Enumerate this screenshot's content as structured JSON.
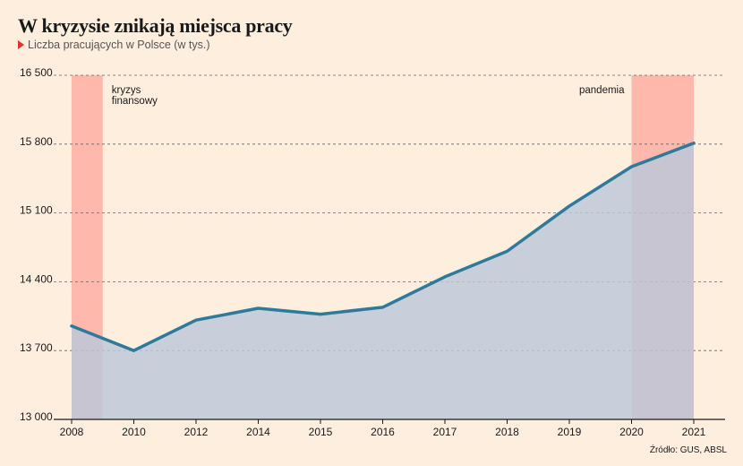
{
  "header": {
    "title": "W kryzysie znikają miejsca pracy",
    "subtitle": "Liczba pracujących w Polsce (w tys.)"
  },
  "source": "Źródło: GUS, ABSL",
  "colors": {
    "line": "#2f7a9a",
    "area": "#bcc8da",
    "band": "#ffb8ab",
    "background": "#fdeede",
    "grid": "#666666"
  },
  "chart_data": {
    "type": "area",
    "title": "W kryzysie znikają miejsca pracy",
    "subtitle": "Liczba pracujących w Polsce (w tys.)",
    "categories": [
      "2008",
      "2010",
      "2012",
      "2014",
      "2015",
      "2016",
      "2017",
      "2018",
      "2019",
      "2020",
      "2021"
    ],
    "series": [
      {
        "values": [
          13950,
          13700,
          14010,
          14130,
          14070,
          14140,
          14450,
          14710,
          15170,
          15570,
          15810
        ]
      }
    ],
    "ylim": [
      13000,
      16500
    ],
    "yticks": [
      13000,
      13700,
      14400,
      15100,
      15800,
      16500
    ],
    "ytick_labels": [
      "13 000",
      "13 700",
      "14 400",
      "15 100",
      "15 800",
      "16 500"
    ],
    "grid": "horizontal dashed",
    "bands": [
      {
        "label_lines": [
          "kryzys",
          "finansowy"
        ],
        "from_category": "2008",
        "to_fraction": 0.5
      },
      {
        "label_lines": [
          "pandemia"
        ],
        "from_category": "2020",
        "to_category": "2021"
      }
    ]
  }
}
